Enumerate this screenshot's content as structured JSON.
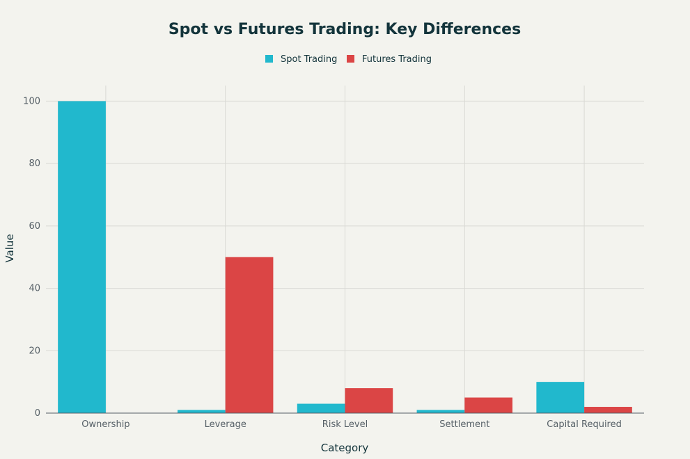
{
  "chart_data": {
    "type": "bar",
    "title": "Spot vs Futures Trading: Key Differences",
    "xlabel": "Category",
    "ylabel": "Value",
    "categories": [
      "Ownership",
      "Leverage",
      "Risk Level",
      "Settlement",
      "Capital Required"
    ],
    "series": [
      {
        "name": "Spot Trading",
        "color": "#21b8cd",
        "values": [
          100,
          1,
          3,
          1,
          10
        ]
      },
      {
        "name": "Futures Trading",
        "color": "#db4545",
        "values": [
          0,
          50,
          8,
          5,
          2
        ]
      }
    ],
    "ylim": [
      0,
      105
    ],
    "yticks": [
      0,
      20,
      40,
      60,
      80,
      100
    ],
    "grid": true,
    "legend_position": "top-center"
  }
}
